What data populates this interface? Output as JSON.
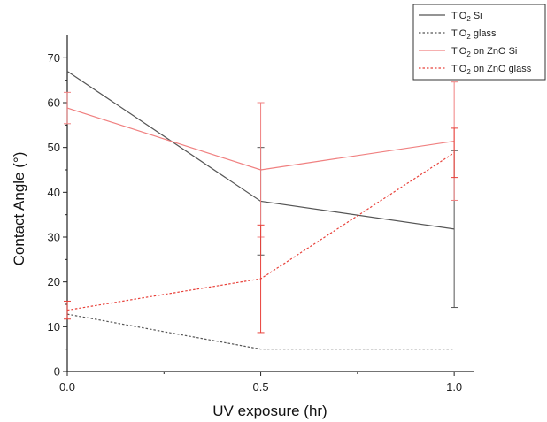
{
  "chart_data": {
    "type": "line",
    "xlabel": "UV exposure (hr)",
    "ylabel": "Contact Angle (°)",
    "x": [
      0.0,
      0.5,
      1.0
    ],
    "x_ticks": [
      "0.0",
      "0.5",
      "1.0"
    ],
    "xlim": [
      0.0,
      1.05
    ],
    "ylim": [
      0,
      75
    ],
    "y_ticks": [
      0,
      10,
      20,
      30,
      40,
      50,
      60,
      70
    ],
    "grid": false,
    "legend_position": "top-right",
    "series": [
      {
        "name": "TiO2 Si",
        "legend_parts": [
          "TiO",
          "2",
          " Si"
        ],
        "color": "#555555",
        "dash": "solid",
        "values": [
          67,
          38,
          31.8
        ],
        "errors": [
          null,
          12,
          17.5
        ]
      },
      {
        "name": "TiO2 glass",
        "legend_parts": [
          "TiO",
          "2",
          " glass"
        ],
        "color": "#555555",
        "dash": "dotted",
        "values": [
          12.8,
          5,
          5
        ],
        "errors": [
          null,
          null,
          null
        ]
      },
      {
        "name": "TiO2 on ZnO Si",
        "legend_parts": [
          "TiO",
          "2",
          " on ZnO Si"
        ],
        "color": "#f08080",
        "dash": "solid",
        "values": [
          58.8,
          45,
          51.4
        ],
        "errors": [
          3.5,
          15,
          13.2
        ]
      },
      {
        "name": "TiO2 on ZnO glass",
        "legend_parts": [
          "TiO",
          "2",
          " on ZnO glass"
        ],
        "color": "#e8413a",
        "dash": "dotted",
        "values": [
          13.7,
          20.7,
          48.8
        ],
        "errors": [
          2,
          12,
          5.5
        ]
      }
    ]
  }
}
